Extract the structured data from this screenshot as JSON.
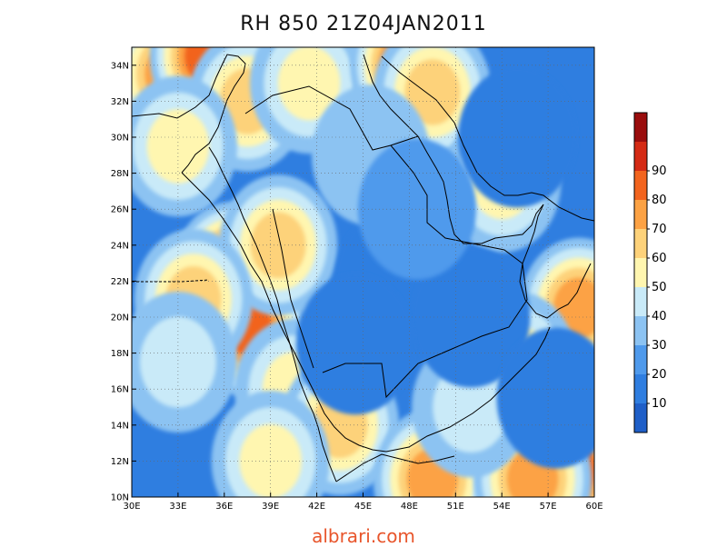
{
  "title": "RH 850  21Z04JAN2011",
  "watermark": "albrari.com",
  "map": {
    "lon_range": [
      30,
      60
    ],
    "lat_range": [
      10,
      35
    ],
    "lon_ticks": [
      {
        "value": 30,
        "label": "30E"
      },
      {
        "value": 33,
        "label": "33E"
      },
      {
        "value": 36,
        "label": "36E"
      },
      {
        "value": 39,
        "label": "39E"
      },
      {
        "value": 42,
        "label": "42E"
      },
      {
        "value": 45,
        "label": "45E"
      },
      {
        "value": 48,
        "label": "48E"
      },
      {
        "value": 51,
        "label": "51E"
      },
      {
        "value": 54,
        "label": "54E"
      },
      {
        "value": 57,
        "label": "57E"
      },
      {
        "value": 60,
        "label": "60E"
      }
    ],
    "lat_ticks": [
      {
        "value": 10,
        "label": "10N"
      },
      {
        "value": 12,
        "label": "12N"
      },
      {
        "value": 14,
        "label": "14N"
      },
      {
        "value": 16,
        "label": "16N"
      },
      {
        "value": 18,
        "label": "18N"
      },
      {
        "value": 20,
        "label": "20N"
      },
      {
        "value": 22,
        "label": "22N"
      },
      {
        "value": 24,
        "label": "24N"
      },
      {
        "value": 26,
        "label": "26N"
      },
      {
        "value": 28,
        "label": "28N"
      },
      {
        "value": 30,
        "label": "30N"
      },
      {
        "value": 32,
        "label": "32N"
      },
      {
        "value": 34,
        "label": "34N"
      }
    ],
    "grid": true
  },
  "colorbar": {
    "levels": [
      10,
      20,
      30,
      40,
      50,
      60,
      70,
      80,
      90
    ],
    "labels": [
      "10",
      "20",
      "30",
      "40",
      "50",
      "60",
      "70",
      "80",
      "90"
    ],
    "colors": [
      "#1f5fc8",
      "#2f7ee0",
      "#4f9aec",
      "#8cc3f2",
      "#c9eaf8",
      "#fff6b0",
      "#fdd27a",
      "#fca244",
      "#f2641e",
      "#d42a14",
      "#9a0d0d"
    ]
  },
  "field_blobs": [
    {
      "lon": 32.5,
      "lat": 33.5,
      "value": 78
    },
    {
      "lon": 35.0,
      "lat": 34.5,
      "value": 86
    },
    {
      "lon": 37.5,
      "lat": 32.0,
      "value": 72
    },
    {
      "lon": 41.5,
      "lat": 33.0,
      "value": 62
    },
    {
      "lon": 33.0,
      "lat": 29.5,
      "value": 55
    },
    {
      "lon": 48.0,
      "lat": 34.0,
      "value": 90
    },
    {
      "lon": 49.5,
      "lat": 32.5,
      "value": 70
    },
    {
      "lon": 38.5,
      "lat": 22.0,
      "value": 90
    },
    {
      "lon": 36.5,
      "lat": 22.5,
      "value": 88
    },
    {
      "lon": 37.5,
      "lat": 19.5,
      "value": 90
    },
    {
      "lon": 39.5,
      "lat": 24.0,
      "value": 72
    },
    {
      "lon": 34.0,
      "lat": 21.0,
      "value": 70
    },
    {
      "lon": 33.0,
      "lat": 17.5,
      "value": 45
    },
    {
      "lon": 40.5,
      "lat": 16.0,
      "value": 58
    },
    {
      "lon": 43.5,
      "lat": 14.0,
      "value": 65
    },
    {
      "lon": 39.0,
      "lat": 12.0,
      "value": 62
    },
    {
      "lon": 49.5,
      "lat": 11.0,
      "value": 75
    },
    {
      "lon": 58.5,
      "lat": 11.5,
      "value": 88
    },
    {
      "lon": 56.0,
      "lat": 11.0,
      "value": 80
    },
    {
      "lon": 59.0,
      "lat": 20.5,
      "value": 75
    },
    {
      "lon": 54.0,
      "lat": 27.5,
      "value": 62
    },
    {
      "lon": 55.0,
      "lat": 17.5,
      "value": 55
    },
    {
      "lon": 52.0,
      "lat": 15.0,
      "value": 45
    },
    {
      "lon": 47.0,
      "lat": 22.0,
      "value": 8
    },
    {
      "lon": 52.0,
      "lat": 20.0,
      "value": 6
    },
    {
      "lon": 44.5,
      "lat": 18.5,
      "value": 10
    },
    {
      "lon": 57.5,
      "lat": 15.5,
      "value": 12
    },
    {
      "lon": 55.0,
      "lat": 30.0,
      "value": 12
    },
    {
      "lon": 45.5,
      "lat": 29.0,
      "value": 30
    },
    {
      "lon": 48.5,
      "lat": 26.0,
      "value": 25
    }
  ]
}
